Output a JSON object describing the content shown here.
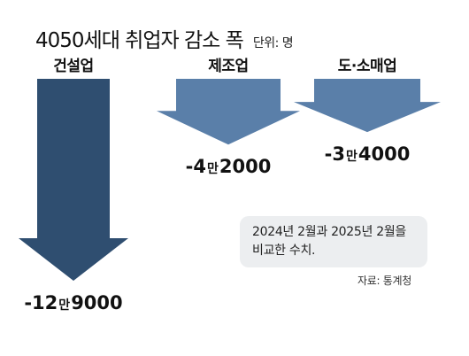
{
  "title": "4050세대 취업자 감소 폭",
  "unit_label": "단위: 명",
  "note": {
    "line1": "2024년 2월과 2025년 2월을",
    "line2": "비교한 수치."
  },
  "source": "자료: 통계청",
  "colors": {
    "construction": "#2f4e70",
    "manufacturing": "#5a7fa9",
    "retail": "#5a7fa9",
    "note_bg": "#eceef0"
  },
  "chart_data": {
    "type": "bar",
    "title": "4050세대 취업자 감소 폭",
    "unit": "단위: 명",
    "categories": [
      "건설업",
      "제조업",
      "도·소매업"
    ],
    "values": [
      -129000,
      -42000,
      -34000
    ],
    "value_labels": [
      {
        "sign": "-",
        "num1": "12",
        "man": "만",
        "num2": "9000"
      },
      {
        "sign": "-",
        "num1": "4",
        "man": "만",
        "num2": "2000"
      },
      {
        "sign": "-",
        "num1": "3",
        "man": "만",
        "num2": "4000"
      }
    ],
    "xlabel": "",
    "ylabel": "",
    "grid": false,
    "legend": "none"
  }
}
